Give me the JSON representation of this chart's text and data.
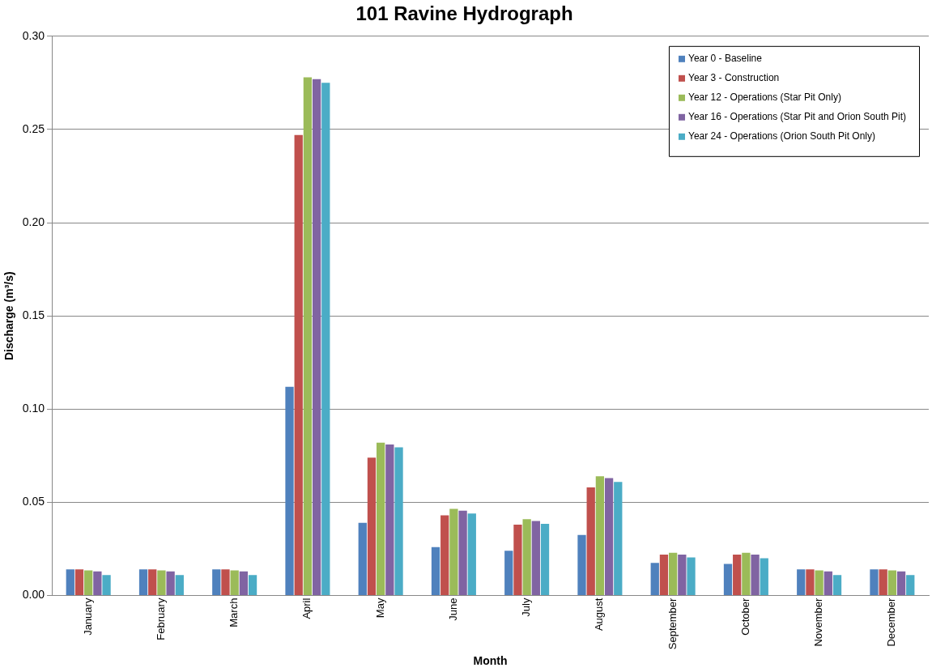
{
  "chart_data": {
    "type": "bar",
    "title": "101 Ravine Hydrograph",
    "xlabel": "Month",
    "ylabel": "Discharge (m³/s)",
    "categories": [
      "January",
      "February",
      "March",
      "April",
      "May",
      "June",
      "July",
      "August",
      "September",
      "October",
      "November",
      "December"
    ],
    "series": [
      {
        "name": "Year 0 - Baseline",
        "color": "#4f81bd",
        "values": [
          0.014,
          0.014,
          0.014,
          0.112,
          0.039,
          0.026,
          0.024,
          0.0325,
          0.0175,
          0.017,
          0.014,
          0.014
        ]
      },
      {
        "name": "Year 3 - Construction",
        "color": "#c0504d",
        "values": [
          0.014,
          0.014,
          0.014,
          0.247,
          0.074,
          0.043,
          0.038,
          0.058,
          0.022,
          0.022,
          0.014,
          0.014
        ]
      },
      {
        "name": "Year 12 - Operations (Star Pit Only)",
        "color": "#9bbb59",
        "values": [
          0.0135,
          0.0135,
          0.0135,
          0.278,
          0.082,
          0.0465,
          0.041,
          0.064,
          0.023,
          0.023,
          0.0135,
          0.0135
        ]
      },
      {
        "name": "Year 16 - Operations (Star Pit and Orion South Pit)",
        "color": "#8064a2",
        "values": [
          0.013,
          0.013,
          0.013,
          0.277,
          0.081,
          0.0455,
          0.04,
          0.063,
          0.022,
          0.022,
          0.013,
          0.013
        ]
      },
      {
        "name": "Year 24 - Operations (Orion South Pit Only)",
        "color": "#4bacc6",
        "values": [
          0.011,
          0.011,
          0.011,
          0.275,
          0.0795,
          0.044,
          0.0385,
          0.061,
          0.0205,
          0.02,
          0.011,
          0.011
        ]
      }
    ],
    "ylim": [
      0,
      0.3
    ],
    "yticks": [
      {
        "value": 0,
        "label": "0.00"
      },
      {
        "value": 0.05,
        "label": "0.05"
      },
      {
        "value": 0.1,
        "label": "0.10"
      },
      {
        "value": 0.15,
        "label": "0.15"
      },
      {
        "value": 0.2,
        "label": "0.20"
      },
      {
        "value": 0.25,
        "label": "0.25"
      },
      {
        "value": 0.3,
        "label": "0.30"
      }
    ],
    "grid": "y",
    "legend": "top right"
  }
}
